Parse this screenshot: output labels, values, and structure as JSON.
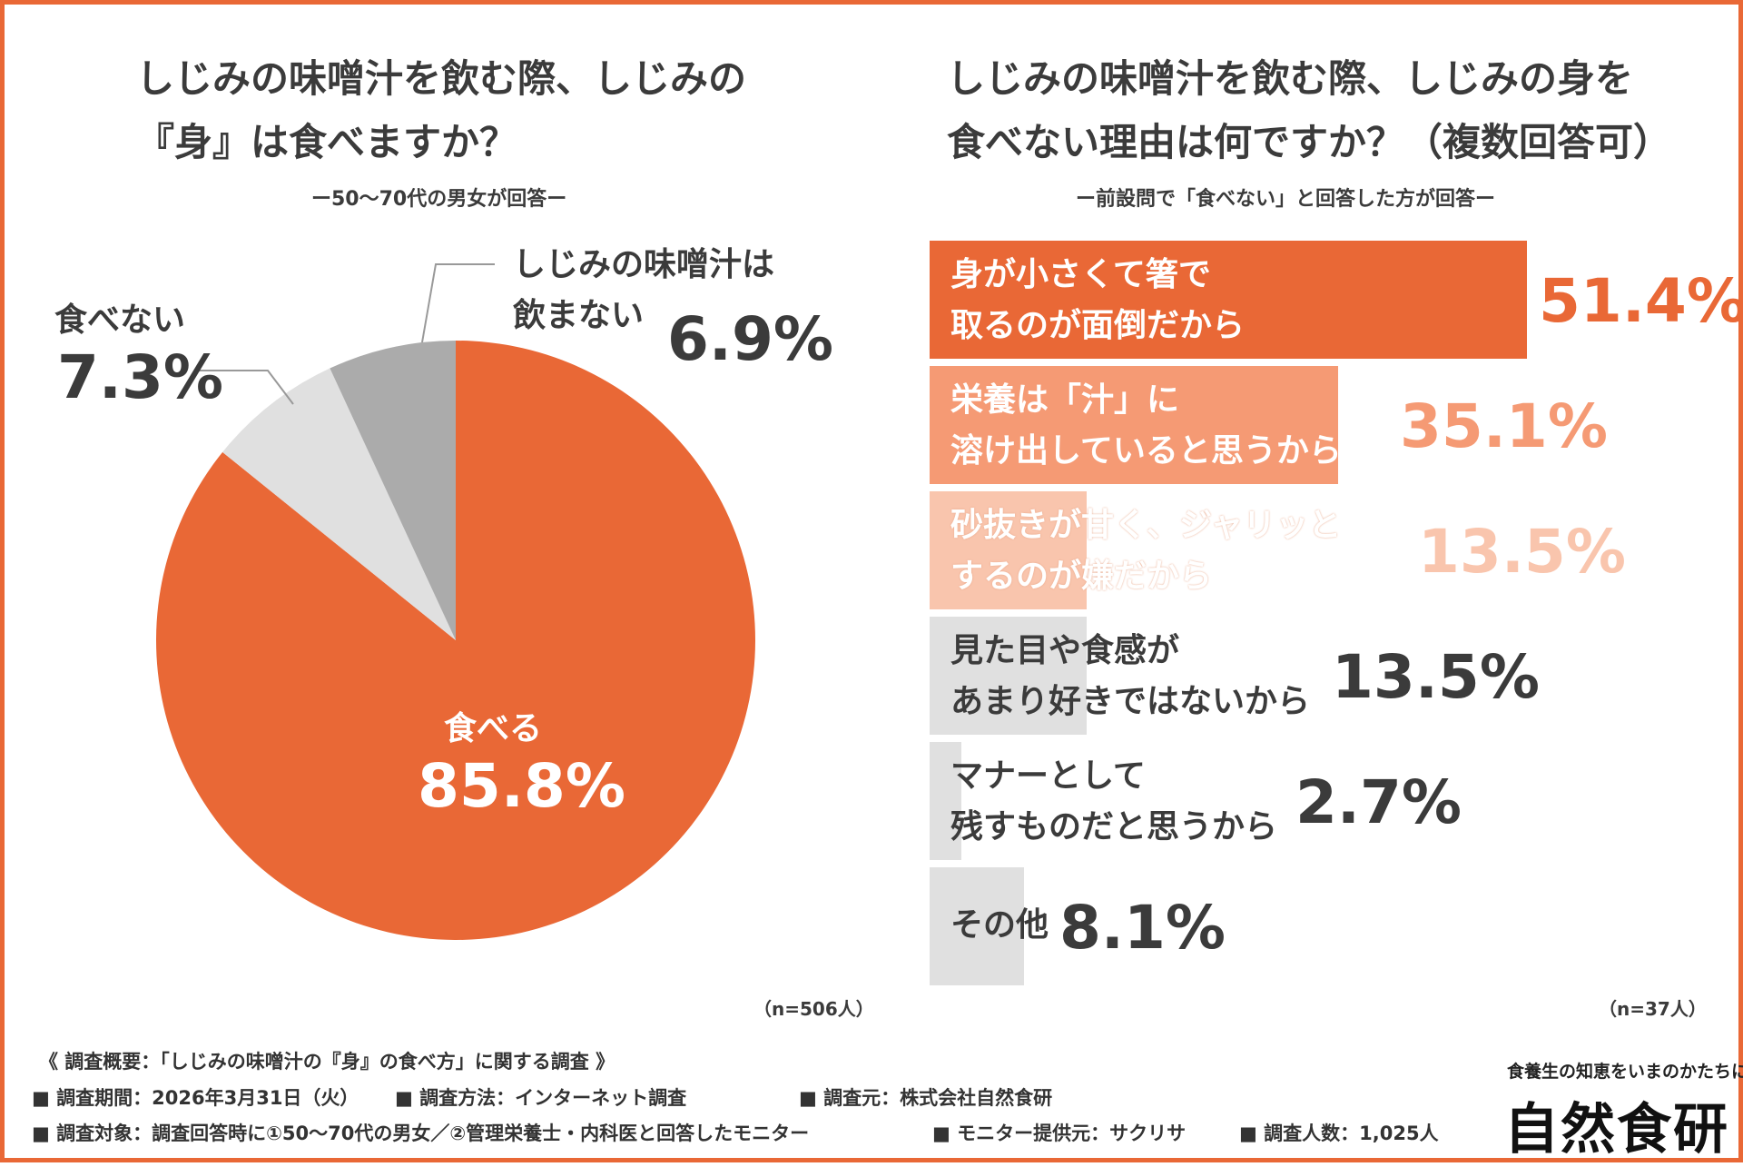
{
  "colors": {
    "accent": "#e96836",
    "accent_light": "#f59a74",
    "accent_pale": "#f9c5ad",
    "gray_dark": "#ababab",
    "gray_light": "#e0e0e0",
    "text": "#3b3b3b"
  },
  "left": {
    "title_line1": "しじみの味噌汁を飲む際、しじみの",
    "title_line2": "『身』は食べますか？",
    "subtitle": "ー50〜70代の男女が回答ー",
    "n": "（n=506人）"
  },
  "right": {
    "title_line1": "しじみの味噌汁を飲む際、しじみの身を",
    "title_line2": "食べない理由は何ですか？（複数回答可）",
    "subtitle": "ー前設問で「食べない」と回答した方が回答ー",
    "n": "（n=37人）"
  },
  "chart_data": [
    {
      "type": "pie",
      "title": "しじみの味噌汁を飲む際、しじみの『身』は食べますか？",
      "slices": [
        {
          "label": "食べる",
          "value": 85.8,
          "pct_text": "85.8%",
          "color": "#e96836"
        },
        {
          "label": "食べない",
          "value": 7.3,
          "pct_text": "7.3%",
          "color": "#e0e0e0"
        },
        {
          "label_line1": "しじみの味噌汁は",
          "label_line2": "飲まない",
          "label": "しじみの味噌汁は飲まない",
          "value": 6.9,
          "pct_text": "6.9%",
          "color": "#ababab"
        }
      ]
    },
    {
      "type": "bar",
      "orientation": "horizontal",
      "title": "しじみの味噌汁を飲む際、しじみの身を食べない理由は何ですか？（複数回答可）",
      "xlim": [
        0,
        100
      ],
      "bars": [
        {
          "line1": "身が小さくて箸で",
          "line2": "取るのが面倒だから",
          "value": 51.4,
          "pct_text": "51.4%",
          "color": "#e96836"
        },
        {
          "line1": "栄養は「汁」に",
          "line2": "溶け出していると思うから",
          "value": 35.1,
          "pct_text": "35.1%",
          "color": "#f59a74"
        },
        {
          "line1": "砂抜きが甘く、ジャリッと",
          "line2": "するのが嫌だから",
          "value": 13.5,
          "pct_text": "13.5%",
          "color": "#f9c5ad"
        },
        {
          "line1": "見た目や食感が",
          "line2": "あまり好きではないから",
          "value": 13.5,
          "pct_text": "13.5%",
          "color": "#e0e0e0"
        },
        {
          "line1": "マナーとして",
          "line2": "残すものだと思うから",
          "value": 2.7,
          "pct_text": "2.7%",
          "color": "#e0e0e0"
        },
        {
          "line1": "その他",
          "line2": "",
          "value": 8.1,
          "pct_text": "8.1%",
          "color": "#e0e0e0"
        }
      ]
    }
  ],
  "footer": {
    "overview": "《 調査概要：「しじみの味噌汁の『身』の食べ方」に関する調査 》",
    "period": "■ 調査期間：2026年3月31日（火）",
    "method": "■ 調査方法：インターネット調査",
    "source": "■ 調査元：株式会社自然食研",
    "target": "■ 調査対象：調査回答時に①50〜70代の男女／②管理栄養士・内科医と回答したモニター",
    "provider": "■ モニター提供元：サクリサ",
    "count": "■ 調査人数：1,025人"
  },
  "logo": {
    "tagline": "食養生の知恵をいまのかたちに",
    "name": "自然食研"
  }
}
